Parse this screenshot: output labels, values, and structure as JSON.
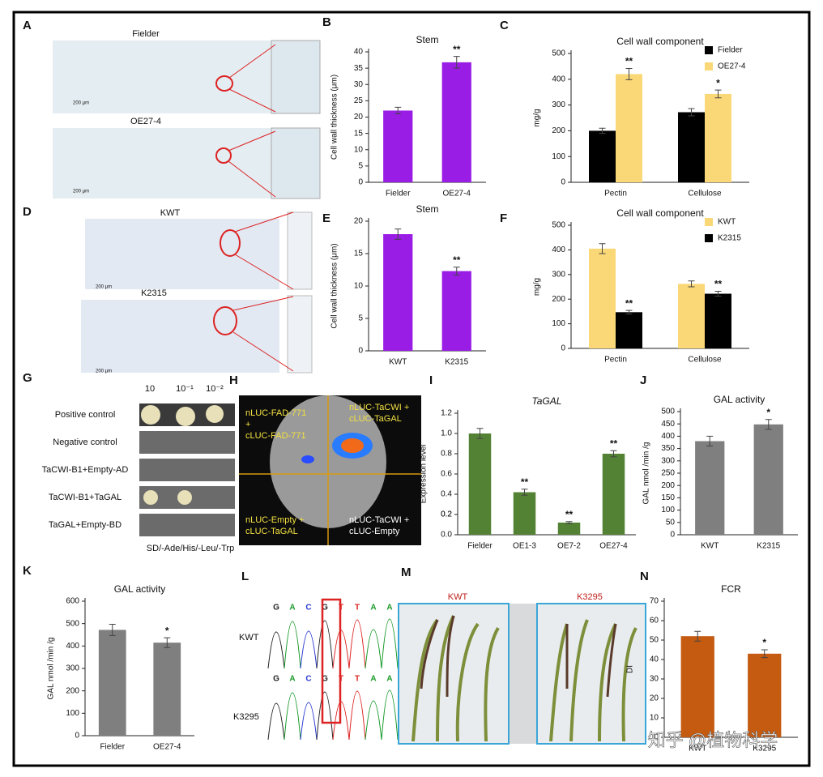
{
  "chart_data": [
    {
      "panel": "B",
      "type": "bar",
      "title": "Stem",
      "ylabel": "Cell wall thickness (μm)",
      "categories": [
        "Fielder",
        "OE27-4"
      ],
      "values": [
        22,
        36.8
      ],
      "errors": [
        1,
        1.8
      ],
      "significance": [
        null,
        "**"
      ],
      "color": "#9a1de6",
      "ylim": [
        0,
        40
      ],
      "yticks": [
        0,
        5,
        10,
        15,
        20,
        25,
        30,
        35,
        40
      ]
    },
    {
      "panel": "C",
      "type": "bar",
      "title": "Cell wall component",
      "ylabel": "mg/g",
      "categories": [
        "Pectin",
        "Cellulose"
      ],
      "series": [
        {
          "name": "Fielder",
          "color": "#000000",
          "values": [
            200,
            272
          ],
          "errors": [
            10,
            14
          ],
          "significance": [
            null,
            null
          ]
        },
        {
          "name": "OE27-4",
          "color": "#fad877",
          "values": [
            420,
            343
          ],
          "errors": [
            22,
            15
          ],
          "significance": [
            "**",
            "*"
          ]
        }
      ],
      "legend": "upper right",
      "ylim": [
        0,
        500
      ],
      "yticks": [
        0,
        100,
        200,
        300,
        400,
        500
      ]
    },
    {
      "panel": "E",
      "type": "bar",
      "title": "Stem",
      "ylabel": "Cell wall thickness (μm)",
      "categories": [
        "KWT",
        "K2315"
      ],
      "values": [
        18,
        12.3
      ],
      "errors": [
        0.8,
        0.6
      ],
      "significance": [
        null,
        "**"
      ],
      "color": "#9a1de6",
      "ylim": [
        0,
        20
      ],
      "yticks": [
        0,
        5,
        10,
        15,
        20
      ]
    },
    {
      "panel": "F",
      "type": "bar",
      "title": "Cell wall component",
      "ylabel": "mg/g",
      "categories": [
        "Pectin",
        "Cellulose"
      ],
      "series": [
        {
          "name": "KWT",
          "color": "#fad877",
          "values": [
            405,
            262
          ],
          "errors": [
            20,
            12
          ],
          "significance": [
            null,
            null
          ]
        },
        {
          "name": "K2315",
          "color": "#000000",
          "values": [
            147,
            222
          ],
          "errors": [
            7,
            10
          ],
          "significance": [
            "**",
            "**"
          ]
        }
      ],
      "legend": "upper right",
      "ylim": [
        0,
        500
      ],
      "yticks": [
        0,
        100,
        200,
        300,
        400,
        500
      ]
    },
    {
      "panel": "I",
      "type": "bar",
      "title": "TaGAL",
      "ylabel": "Expression level",
      "categories": [
        "Fielder",
        "OE1-3",
        "OE7-2",
        "OE27-4"
      ],
      "values": [
        1.0,
        0.42,
        0.12,
        0.8
      ],
      "errors": [
        0.05,
        0.03,
        0.01,
        0.03
      ],
      "significance": [
        null,
        "**",
        "**",
        "**"
      ],
      "color": "#548235",
      "ylim": [
        0,
        1.2
      ],
      "yticks": [
        {
          "value": 0,
          "label": "0.0"
        },
        0.2,
        0.4,
        0.6,
        0.8,
        {
          "value": 1,
          "label": "1.0"
        },
        0.2,
        1.2
      ]
    },
    {
      "panel": "J",
      "type": "bar",
      "title": "GAL activity",
      "ylabel": "GAL nmol /min /g",
      "categories": [
        "KWT",
        "K2315"
      ],
      "values": [
        380,
        448
      ],
      "errors": [
        20,
        20
      ],
      "significance": [
        null,
        "*"
      ],
      "color": "#7f7f7f",
      "ylim": [
        0,
        500
      ],
      "yticks": [
        0,
        50,
        100,
        150,
        200,
        250,
        300,
        350,
        400,
        450,
        500
      ]
    },
    {
      "panel": "K",
      "type": "bar",
      "title": "GAL activity",
      "ylabel": "GAL nmol /min /g",
      "categories": [
        "Fielder",
        "OE27-4"
      ],
      "values": [
        472,
        415
      ],
      "errors": [
        25,
        22
      ],
      "significance": [
        null,
        "*"
      ],
      "color": "#7f7f7f",
      "ylim": [
        0,
        600
      ],
      "yticks": [
        0,
        100,
        200,
        300,
        400,
        500,
        600
      ]
    },
    {
      "panel": "N",
      "type": "bar",
      "title": "FCR",
      "ylabel": "DI",
      "categories": [
        "KWT",
        "K3295"
      ],
      "values": [
        52,
        43
      ],
      "errors": [
        2.5,
        2
      ],
      "significance": [
        null,
        "*"
      ],
      "color": "#c55a11",
      "ylim": [
        0,
        70
      ],
      "yticks": [
        0,
        10,
        20,
        30,
        40,
        50,
        60,
        70
      ]
    }
  ],
  "panel_A": {
    "label": "A",
    "rows": [
      "Fielder",
      "OE27-4"
    ],
    "scale_bar": "200 μm"
  },
  "panel_D": {
    "label": "D",
    "rows": [
      "KWT",
      "K2315"
    ],
    "scale_bar": "200 μm"
  },
  "panel_G": {
    "label": "G",
    "dilutions": [
      "10",
      "10⁻¹",
      "10⁻²"
    ],
    "rows": [
      "Positive control",
      "Negative control",
      "TaCWI-B1+Empty-AD",
      "TaCWI-B1+TaGAL",
      "TaGAL+Empty-BD"
    ],
    "medium": "SD/-Ade/His/-Leu/-Trp"
  },
  "panel_H": {
    "label": "H",
    "quadrants": [
      [
        "nLUC-FAD-771",
        "+",
        "cLUC-FAD-771"
      ],
      [
        "nLUC-TaCWI +",
        "cLUC-TaGAL"
      ],
      [
        "nLUC-Empty +",
        "cLUC-TaGAL"
      ],
      [
        "nLUC-TaCWI +",
        "cLUC-Empty"
      ]
    ]
  },
  "panel_L": {
    "label": "L",
    "bases": [
      "G",
      "A",
      "C",
      "G",
      "T",
      "T",
      "A",
      "A"
    ],
    "rows": [
      "KWT",
      "K3295"
    ]
  },
  "panel_M": {
    "label": "M",
    "labels": [
      "KWT",
      "K3295"
    ]
  },
  "watermark": "知乎 @植物科学"
}
